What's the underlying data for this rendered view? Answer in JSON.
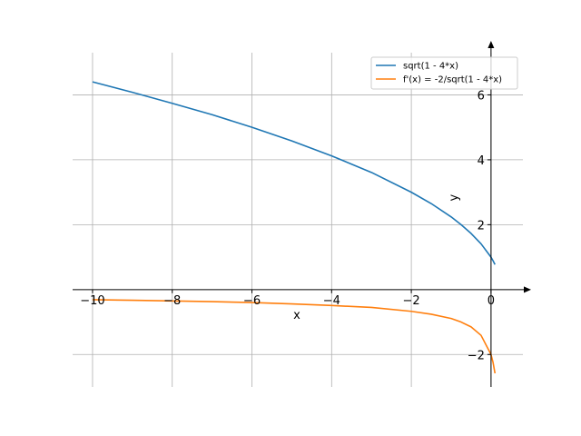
{
  "chart_data": {
    "type": "line",
    "xlabel": "x",
    "ylabel": "y",
    "xlim": [
      -10.5,
      0.8
    ],
    "ylim": [
      -3.0,
      7.3
    ],
    "grid": true,
    "legend_position": "top-right",
    "x_ticks": [
      -10,
      -8,
      -6,
      -4,
      -2,
      0
    ],
    "x_tick_labels": [
      "−10",
      "−8",
      "−6",
      "−4",
      "−2",
      "0"
    ],
    "y_ticks": [
      -2,
      2,
      4,
      6
    ],
    "y_tick_labels": [
      "−2",
      "2",
      "4",
      "6"
    ],
    "x_range": [
      -10,
      0.1
    ],
    "series": [
      {
        "name": "sqrt(1 - 4*x)",
        "color": "#1f77b4",
        "x": [
          -10,
          -9,
          -8,
          -7,
          -6,
          -5,
          -4,
          -3,
          -2,
          -1.5,
          -1,
          -0.75,
          -0.5,
          -0.25,
          0,
          0.05,
          0.1
        ],
        "y": [
          6.4,
          6.08,
          5.74,
          5.39,
          5.0,
          4.58,
          4.12,
          3.61,
          3.0,
          2.65,
          2.24,
          2.0,
          1.73,
          1.41,
          1.0,
          0.89,
          0.77
        ]
      },
      {
        "name": "f'(x) = -2/sqrt(1 - 4*x)",
        "color": "#ff7f0e",
        "x": [
          -10,
          -9,
          -8,
          -7,
          -6,
          -5,
          -4,
          -3,
          -2,
          -1.5,
          -1,
          -0.75,
          -0.5,
          -0.25,
          0,
          0.05,
          0.1
        ],
        "y": [
          -0.31,
          -0.33,
          -0.35,
          -0.37,
          -0.4,
          -0.44,
          -0.49,
          -0.55,
          -0.67,
          -0.76,
          -0.89,
          -1.0,
          -1.15,
          -1.41,
          -2.0,
          -2.24,
          -2.58
        ]
      }
    ]
  }
}
